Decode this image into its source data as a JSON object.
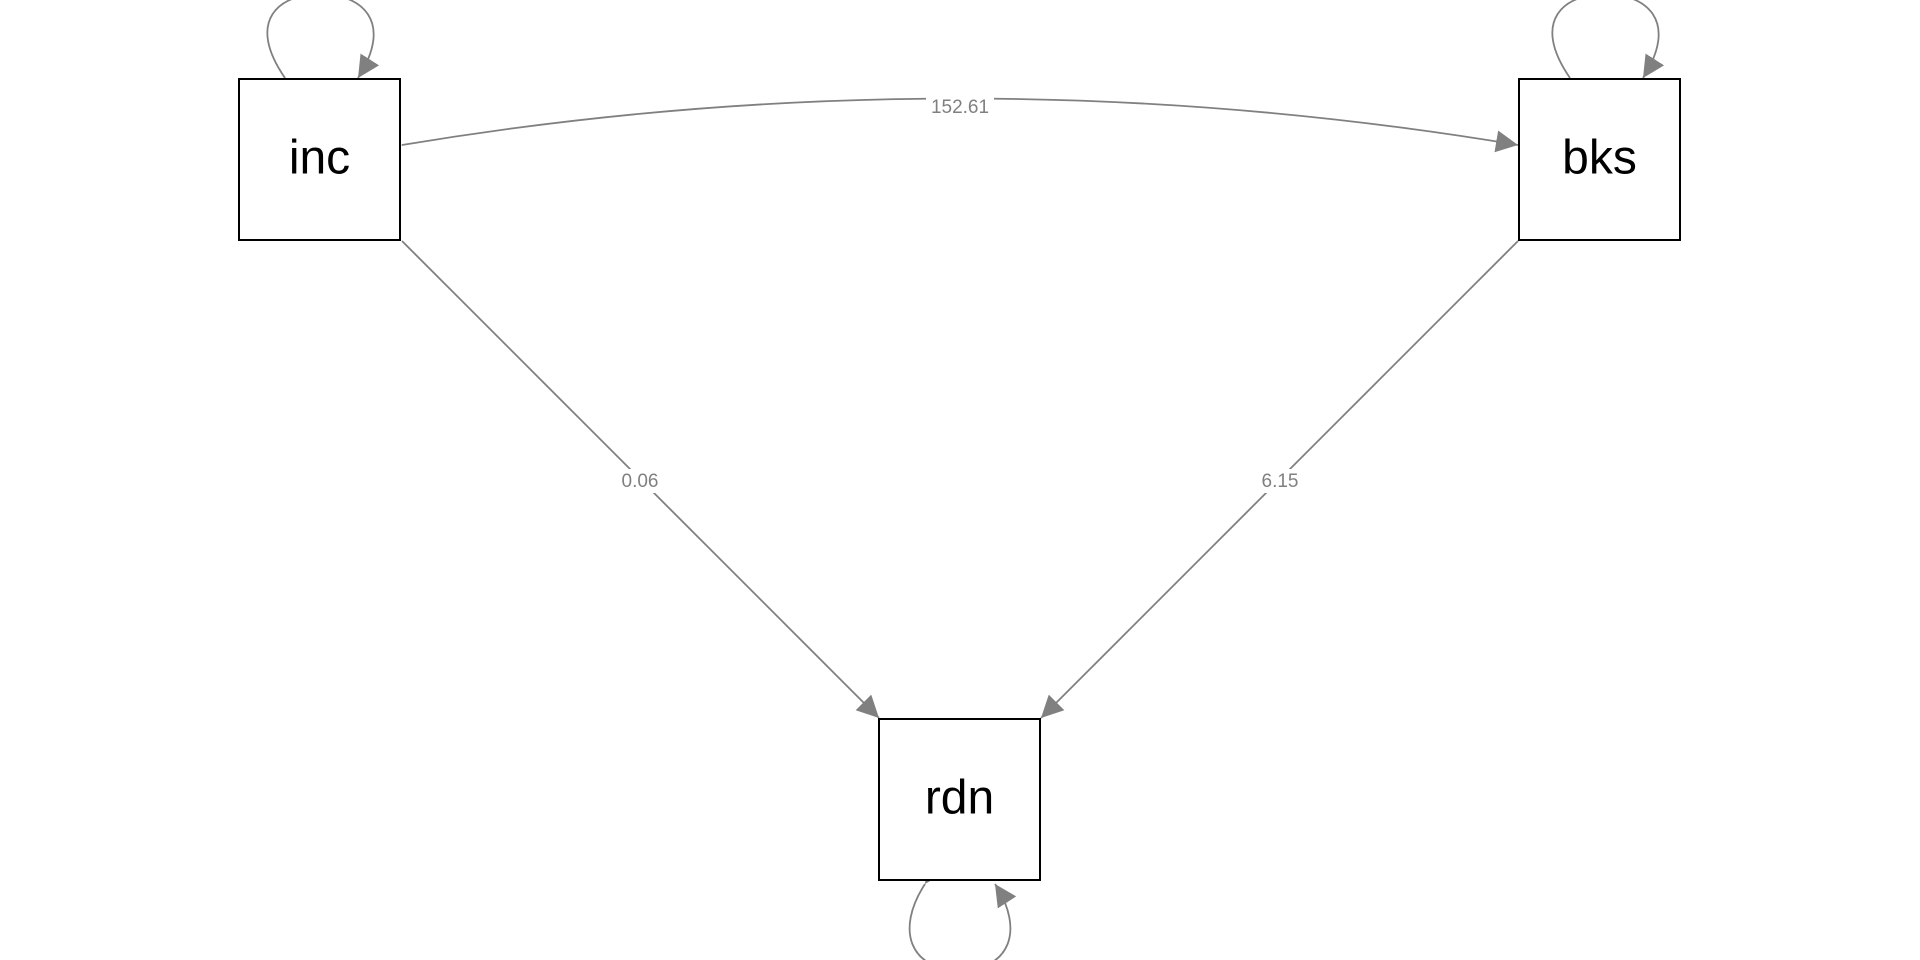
{
  "colors": {
    "edge": "#808080",
    "node_border": "#000000",
    "node_text": "#000000",
    "edge_label": "#808080",
    "background": "#ffffff"
  },
  "nodes": {
    "inc": {
      "label": "inc"
    },
    "bks": {
      "label": "bks"
    },
    "rdn": {
      "label": "rdn"
    }
  },
  "paths": {
    "inc_to_rdn": {
      "from": "inc",
      "to": "rdn",
      "label": "0.06"
    },
    "bks_to_rdn": {
      "from": "bks",
      "to": "rdn",
      "label": "6.15"
    }
  },
  "covariances": {
    "inc_bks": {
      "between": [
        "inc",
        "bks"
      ],
      "label": "152.61"
    }
  },
  "variances": {
    "inc": {
      "label": ""
    },
    "bks": {
      "label": ""
    },
    "rdn": {
      "label": ""
    }
  }
}
